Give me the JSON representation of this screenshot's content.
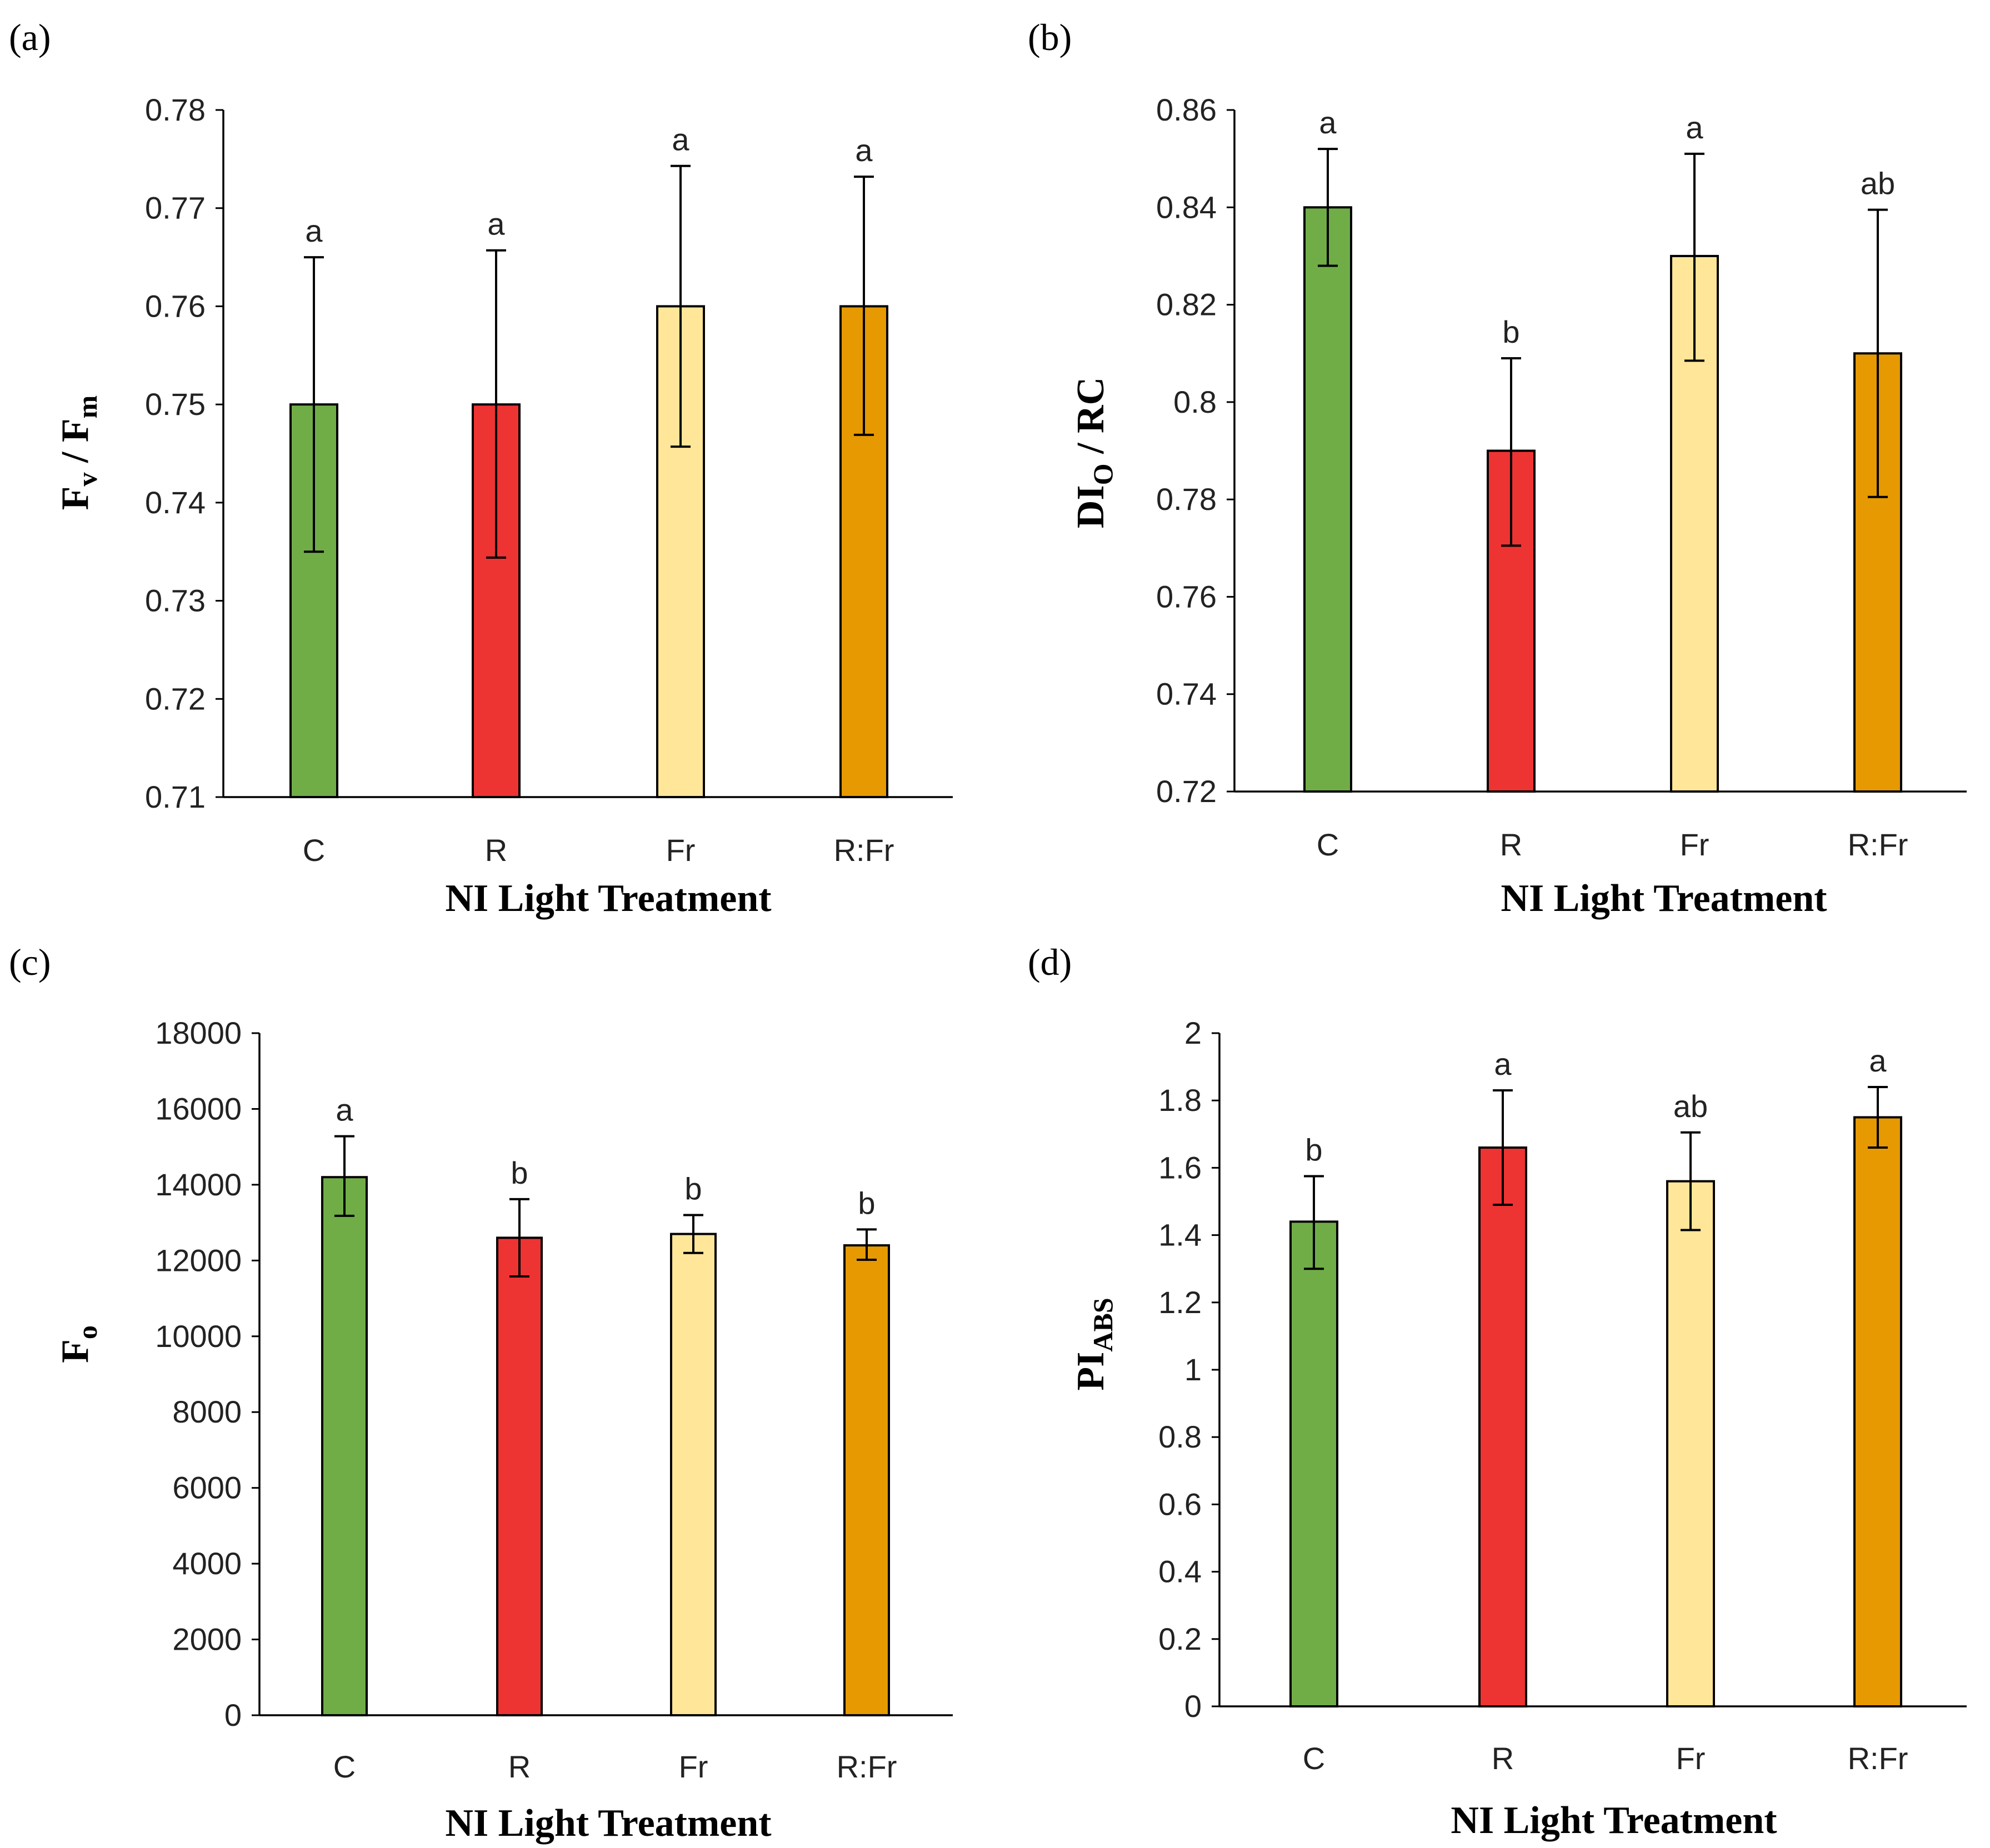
{
  "panels": [
    {
      "label": "(a)",
      "ylabel_main": "F",
      "ylabel_sub1": "v",
      "ylabel_mid": " / F",
      "ylabel_sub2": "m",
      "xlabel": "NI Light Treatment"
    },
    {
      "label": "(b)",
      "ylabel_main": "DI",
      "ylabel_sub1": "O",
      "ylabel_mid": " / RC",
      "ylabel_sub2": "",
      "xlabel": "NI Light Treatment"
    },
    {
      "label": "(c)",
      "ylabel_main": "F",
      "ylabel_sub1": "o",
      "ylabel_mid": "",
      "ylabel_sub2": "",
      "xlabel": "NI Light Treatment"
    },
    {
      "label": "(d)",
      "ylabel_main": "PI",
      "ylabel_sub1": "ABS",
      "ylabel_mid": "",
      "ylabel_sub2": "",
      "xlabel": "NI Light Treatment"
    }
  ],
  "colors": {
    "C": "#70AD47",
    "R": "#EE3333",
    "Fr": "#FFE699",
    "R:Fr": "#E69900"
  },
  "chart_data": [
    {
      "type": "bar",
      "categories": [
        "C",
        "R",
        "Fr",
        "R:Fr"
      ],
      "values": [
        0.75,
        0.75,
        0.76,
        0.76
      ],
      "error_upper": [
        0.765,
        0.7657,
        0.7743,
        0.7732
      ],
      "error_lower": [
        0.735,
        0.7344,
        0.7457,
        0.7469
      ],
      "significance": [
        "a",
        "a",
        "a",
        "a"
      ],
      "xlabel": "NI Light Treatment",
      "ylabel": "Fv / Fm",
      "ylim": [
        0.71,
        0.78
      ],
      "yticks": [
        "0.71",
        "0.72",
        "0.73",
        "0.74",
        "0.75",
        "0.76",
        "0.77",
        "0.78"
      ],
      "grid": false
    },
    {
      "type": "bar",
      "categories": [
        "C",
        "R",
        "Fr",
        "R:Fr"
      ],
      "values": [
        0.84,
        0.79,
        0.83,
        0.81
      ],
      "error_upper": [
        0.852,
        0.809,
        0.851,
        0.8395
      ],
      "error_lower": [
        0.828,
        0.7705,
        0.8085,
        0.7805
      ],
      "significance": [
        "a",
        "b",
        "a",
        "ab"
      ],
      "xlabel": "NI Light Treatment",
      "ylabel": "DIO / RC",
      "ylim": [
        0.72,
        0.86
      ],
      "yticks": [
        "0.72",
        "0.74",
        "0.76",
        "0.78",
        "0.8",
        "0.82",
        "0.84",
        "0.86"
      ],
      "grid": false
    },
    {
      "type": "bar",
      "categories": [
        "C",
        "R",
        "Fr",
        "R:Fr"
      ],
      "values": [
        14200,
        12600,
        12700,
        12400
      ],
      "error_upper": [
        15280,
        13620,
        13200,
        12820
      ],
      "error_lower": [
        13180,
        11580,
        12200,
        12020
      ],
      "significance": [
        "a",
        "b",
        "b",
        "b"
      ],
      "xlabel": "NI Light Treatment",
      "ylabel": "Fo",
      "ylim": [
        0,
        18000
      ],
      "yticks": [
        "0",
        "2000",
        "4000",
        "6000",
        "8000",
        "10000",
        "12000",
        "14000",
        "16000",
        "18000"
      ],
      "grid": false
    },
    {
      "type": "bar",
      "categories": [
        "C",
        "R",
        "Fr",
        "R:Fr"
      ],
      "values": [
        1.44,
        1.66,
        1.56,
        1.75
      ],
      "error_upper": [
        1.575,
        1.83,
        1.705,
        1.84
      ],
      "error_lower": [
        1.3,
        1.49,
        1.415,
        1.66
      ],
      "significance": [
        "b",
        "a",
        "ab",
        "a"
      ],
      "xlabel": "NI Light Treatment",
      "ylabel": "PIABS",
      "ylim": [
        0,
        2
      ],
      "yticks": [
        "0",
        "0.2",
        "0.4",
        "0.6",
        "0.8",
        "1",
        "1.2",
        "1.4",
        "1.6",
        "1.8",
        "2"
      ],
      "grid": false
    }
  ]
}
